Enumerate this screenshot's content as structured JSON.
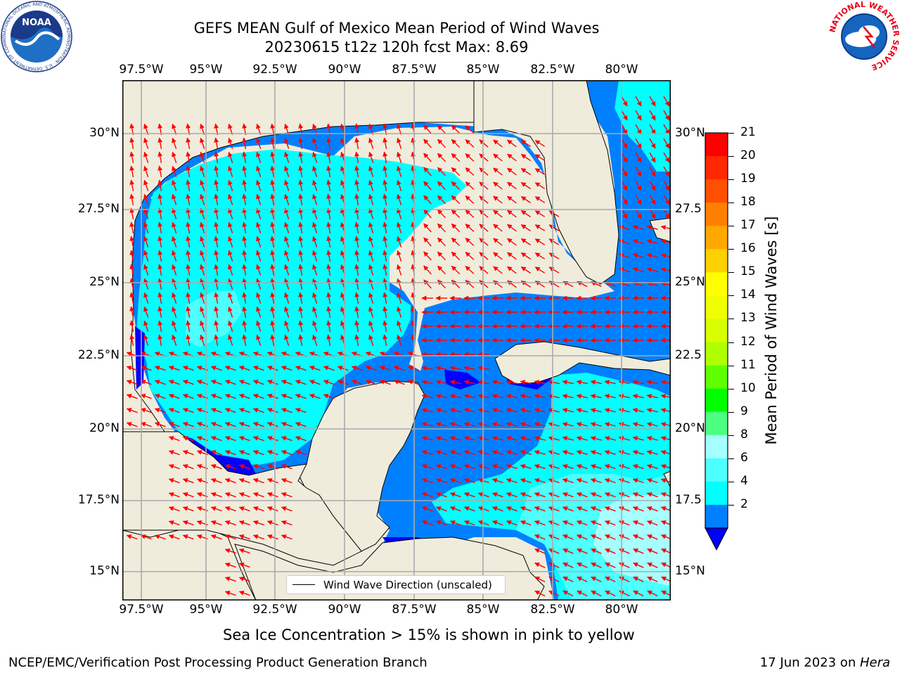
{
  "header": {
    "title_line1": "GEFS MEAN Gulf of Mexico Mean Period of Wind Waves",
    "title_line2": "20230615 t12z 120h fcst   Max: 8.69"
  },
  "map": {
    "lon_ticks": [
      "97.5°W",
      "95°W",
      "92.5°W",
      "90°W",
      "87.5°W",
      "85°W",
      "82.5°W",
      "80°W"
    ],
    "lat_ticks_left": [
      "30°N",
      "27.5°N",
      "25°N",
      "22.5°N",
      "20°N",
      "17.5°N",
      "15°N"
    ],
    "lat_ticks_right": [
      "30°N",
      "27.5",
      "25°N",
      "22.5",
      "20°N",
      "17.5",
      "15°N"
    ],
    "legend_label": "Wind Wave Direction (unscaled)",
    "colors": {
      "land": "#efecdc",
      "wave_2_4": "#0080ff",
      "wave_4_6": "#00ffff",
      "wave_6_8": "#4dffff",
      "wave_8_9": "#a6ffff",
      "below_2": "#0000ff",
      "arrow": "#ff0000",
      "grid": "#aaaaaa"
    }
  },
  "colorbar": {
    "ticks": [
      "21",
      "20",
      "19",
      "18",
      "17",
      "16",
      "15",
      "14",
      "13",
      "12",
      "11",
      "10",
      "9",
      "8",
      "6",
      "4",
      "2"
    ],
    "label": "Mean Period of Wind Waves [s]",
    "colors_top_to_bottom": [
      "#ff0000",
      "#ff2800",
      "#ff5000",
      "#ff8000",
      "#ffa800",
      "#ffd000",
      "#ffff00",
      "#f0ff00",
      "#d8ff00",
      "#b0ff00",
      "#60ff00",
      "#00ff00",
      "#4dff80",
      "#a6ffff",
      "#4dffff",
      "#00ffff",
      "#0080ff"
    ],
    "extend_color": "#0000ff"
  },
  "caption": "Sea Ice Concentration > 15% is shown in pink to yellow",
  "footer": {
    "left": "NCEP/EMC/Verification Post Processing Product Generation Branch",
    "right_date": "17 Jun 2023 on ",
    "right_machine": "Hera"
  },
  "logos": {
    "noaa_text": "NOAA",
    "noaa_ring": "NATIONAL OCEANIC AND ATMOSPHERIC ADMINISTRATION · U.S. DEPARTMENT OF COMMERCE ·",
    "nws_ring": "NATIONAL WEATHER SERVICE"
  }
}
